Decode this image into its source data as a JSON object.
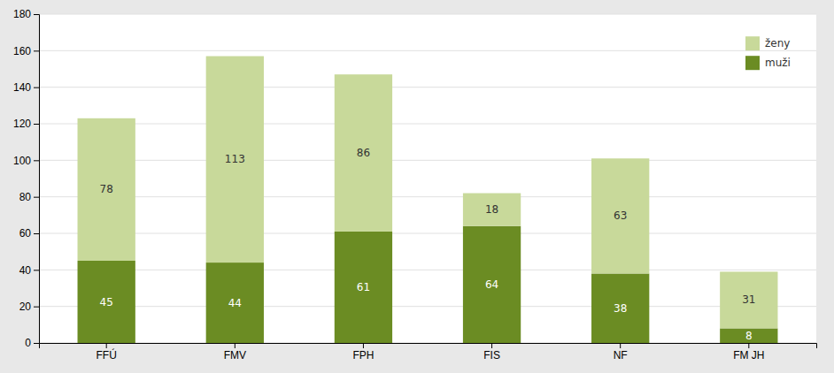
{
  "chart_data": {
    "type": "bar",
    "stacked": true,
    "categories": [
      "FFÚ",
      "FMV",
      "FPH",
      "FIS",
      "NF",
      "FM JH"
    ],
    "series": [
      {
        "name": "muži",
        "color": "#6b8c23",
        "values": [
          45,
          44,
          61,
          64,
          38,
          8
        ]
      },
      {
        "name": "ženy",
        "color": "#c8d99a",
        "values": [
          78,
          113,
          86,
          18,
          63,
          31
        ]
      }
    ],
    "ylim": [
      0,
      180
    ],
    "yticks": [
      0,
      20,
      40,
      60,
      80,
      100,
      120,
      140,
      160,
      180
    ],
    "grid": true,
    "legend": "upper right",
    "data_labels": true
  }
}
